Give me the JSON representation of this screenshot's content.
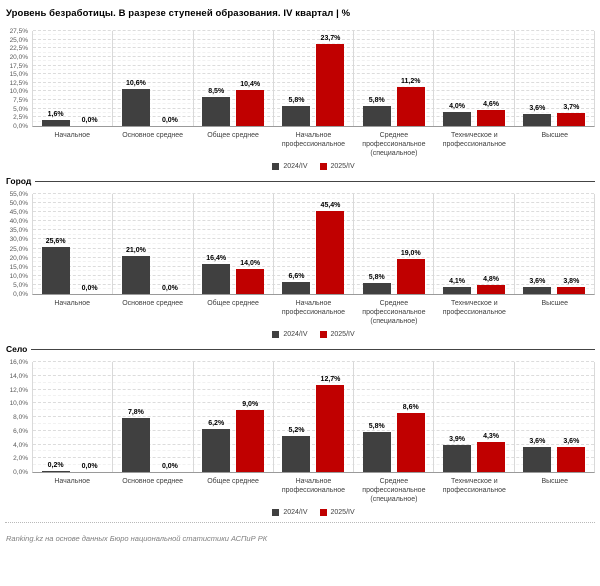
{
  "title": "Уровень безработицы. В разрезе ступеней образования. IV квартал | %",
  "footer": "Ranking.kz на основе данных Бюро национальной статистики АСПиР РК",
  "colors": {
    "series_2024": "#404040",
    "series_2025": "#c00000"
  },
  "legend": {
    "series1": "2024/IV",
    "series2": "2025/IV"
  },
  "chart_data": [
    {
      "type": "bar",
      "section": "",
      "categories": [
        "Начальное",
        "Основное среднее",
        "Общее среднее",
        "Начальное профессиональное",
        "Среднее профессиональное (специальное)",
        "Техническое и профессиональное",
        "Высшее"
      ],
      "series": [
        {
          "name": "2024/IV",
          "color": "#404040",
          "values": [
            1.6,
            10.6,
            8.5,
            5.8,
            5.8,
            4.0,
            3.6
          ]
        },
        {
          "name": "2025/IV",
          "color": "#c00000",
          "values": [
            0.0,
            0.0,
            10.4,
            23.7,
            11.2,
            4.6,
            3.7
          ]
        }
      ],
      "ylim": [
        0,
        27.5
      ],
      "ytick_step": 2.5,
      "grid": true,
      "legend_position": "bottom"
    },
    {
      "type": "bar",
      "section": "Город",
      "categories": [
        "Начальное",
        "Основное среднее",
        "Общее среднее",
        "Начальное профессиональное",
        "Среднее профессиональное (специальное)",
        "Техническое и профессиональное",
        "Высшее"
      ],
      "series": [
        {
          "name": "2024/IV",
          "color": "#404040",
          "values": [
            25.6,
            21.0,
            16.4,
            6.6,
            5.8,
            4.1,
            3.6
          ]
        },
        {
          "name": "2025/IV",
          "color": "#c00000",
          "values": [
            0.0,
            0.0,
            14.0,
            45.4,
            19.0,
            4.8,
            3.8
          ]
        }
      ],
      "ylim": [
        0,
        55
      ],
      "ytick_step": 5,
      "grid": true,
      "legend_position": "bottom"
    },
    {
      "type": "bar",
      "section": "Село",
      "categories": [
        "Начальное",
        "Основное среднее",
        "Общее среднее",
        "Начальное профессиональное",
        "Среднее профессиональное (специальное)",
        "Техническое и профессиональное",
        "Высшее"
      ],
      "series": [
        {
          "name": "2024/IV",
          "color": "#404040",
          "values": [
            0.2,
            7.8,
            6.2,
            5.2,
            5.8,
            3.9,
            3.6
          ]
        },
        {
          "name": "2025/IV",
          "color": "#c00000",
          "values": [
            0.0,
            0.0,
            9.0,
            12.7,
            8.6,
            4.3,
            3.6
          ]
        }
      ],
      "ylim": [
        0,
        16
      ],
      "ytick_step": 2,
      "grid": true,
      "legend_position": "bottom"
    }
  ]
}
